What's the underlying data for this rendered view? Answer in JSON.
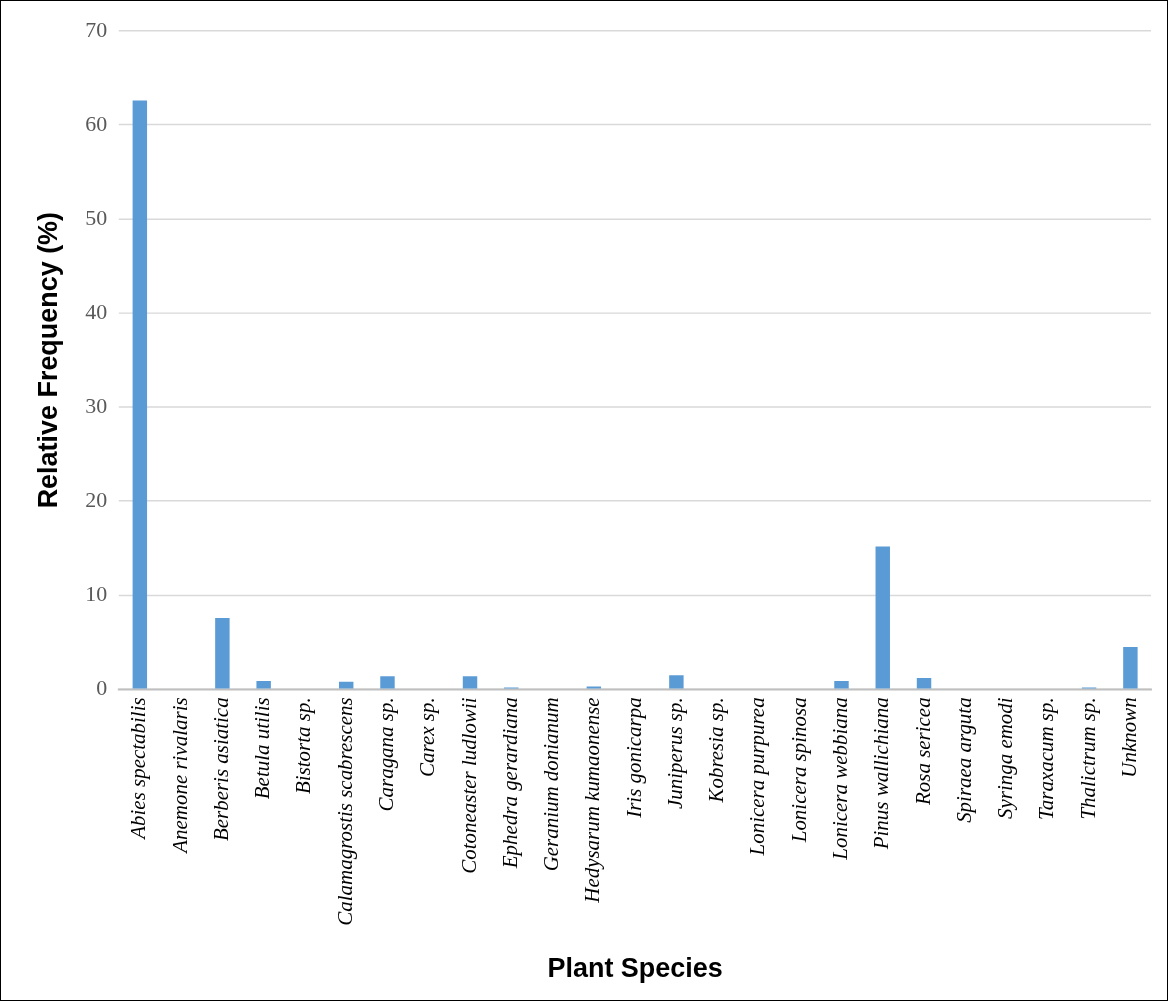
{
  "chart_data": {
    "type": "bar",
    "xlabel": "Plant Species",
    "ylabel": "Relative Frequency (%)",
    "categories": [
      "Abies spectabilis",
      "Anemone rivalaris",
      "Berberis asiatica",
      "Betula utilis",
      "Bistorta sp.",
      "Calamagrostis scabrescens",
      "Caragana sp.",
      "Carex sp.",
      "Cotoneaster ludlowii",
      "Ephedra gerardiana",
      "Geranium donianum",
      "Hedysarum kumaonense",
      "Iris gonicarpa",
      "Juniperus sp.",
      "Kobresia sp.",
      "Lonicera purpurea",
      "Lonicera spinosa",
      "Lonicera webbiana",
      "Pinus wallichiana",
      "Rosa sericea",
      "Spiraea arguta",
      "Syringa emodi",
      "Taraxacum sp.",
      "Thalictrum sp.",
      "Unknown"
    ],
    "values": [
      62.6,
      0,
      7.6,
      0.9,
      0,
      0.8,
      1.4,
      0,
      1.4,
      0.2,
      0,
      0.3,
      0,
      1.5,
      0,
      0,
      0,
      0.9,
      15.2,
      1.2,
      0,
      0,
      0,
      0.2,
      4.5
    ],
    "color": "#5b9bd5",
    "ylim": [
      0,
      70
    ],
    "yticks": [
      0,
      10,
      20,
      30,
      40,
      50,
      60,
      70
    ],
    "grid": "y",
    "legend": false
  }
}
